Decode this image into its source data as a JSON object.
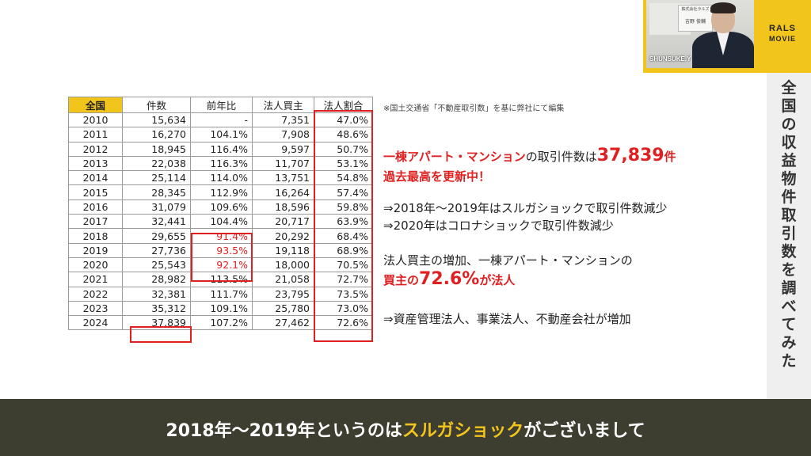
{
  "brand": {
    "line1": "RALS",
    "line2": "MOVIE"
  },
  "webcam": {
    "presenter_label": "SHUNSUKE.Y",
    "nameplate_top": "株式会社ラルズ",
    "nameplate_name": "吉野 俊輔"
  },
  "vertical_title": "全国の収益物件取引数を調べてみた",
  "table": {
    "headers": [
      "全国",
      "件数",
      "前年比",
      "法人買主",
      "法人割合"
    ],
    "rows": [
      [
        "2010",
        "15,634",
        "-",
        "7,351",
        "47.0%"
      ],
      [
        "2011",
        "16,270",
        "104.1%",
        "7,908",
        "48.6%"
      ],
      [
        "2012",
        "18,945",
        "116.4%",
        "9,597",
        "50.7%"
      ],
      [
        "2013",
        "22,038",
        "116.3%",
        "11,707",
        "53.1%"
      ],
      [
        "2014",
        "25,114",
        "114.0%",
        "13,751",
        "54.8%"
      ],
      [
        "2015",
        "28,345",
        "112.9%",
        "16,264",
        "57.4%"
      ],
      [
        "2016",
        "31,079",
        "109.6%",
        "18,596",
        "59.8%"
      ],
      [
        "2017",
        "32,441",
        "104.4%",
        "20,717",
        "63.9%"
      ],
      [
        "2018",
        "29,655",
        "91.4%",
        "20,292",
        "68.4%"
      ],
      [
        "2019",
        "27,736",
        "93.5%",
        "19,118",
        "68.9%"
      ],
      [
        "2020",
        "25,543",
        "92.1%",
        "18,000",
        "70.5%"
      ],
      [
        "2021",
        "28,982",
        "113.5%",
        "21,058",
        "72.7%"
      ],
      [
        "2022",
        "32,381",
        "111.7%",
        "23,795",
        "73.5%"
      ],
      [
        "2023",
        "35,312",
        "109.1%",
        "25,780",
        "73.0%"
      ],
      [
        "2024",
        "37,839",
        "107.2%",
        "27,462",
        "72.6%"
      ]
    ],
    "highlight_color": "#e02020",
    "header_color": "#f2c51c"
  },
  "source_note": "※国土交通省「不動産取引数」を基に弊社にて編集",
  "points": {
    "p1_red": "一棟アパート・マンション",
    "p1_text": "の取引件数は",
    "p1_big": "37,839",
    "p1_suffix": "件",
    "p2": "過去最高を更新中！",
    "p3": "⇒2018年～2019年はスルガショックで取引件数減少",
    "p4": "⇒2020年はコロナショックで取引件数減少",
    "p5": "法人買主の増加、一棟アパート・マンションの",
    "p6_a": "買主の",
    "p6_big": "72.6%",
    "p6_b": "が法人",
    "p7": "⇒資産管理法人、事業法人、不動産会社が増加"
  },
  "caption": {
    "part1": "2018年～2019年というのは",
    "highlight": "スルガショック",
    "part2": "がございまして"
  },
  "colors": {
    "accent_yellow": "#f2c51c",
    "accent_red": "#e02020",
    "caption_bg": "#3d3d30"
  }
}
